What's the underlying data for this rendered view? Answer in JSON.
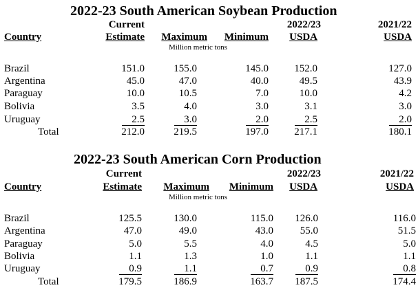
{
  "tables": [
    {
      "title": "2022-23 South American Soybean Production",
      "columns": {
        "country": "Country",
        "current_line1": "Current",
        "current_line2": "Estimate",
        "maximum": "Maximum",
        "minimum": "Minimum",
        "usda2223_line1": "2022/23",
        "usda2223_line2": "USDA",
        "usda2122_line1": "2021/22",
        "usda2122_line2": "USDA"
      },
      "unit": "Million metric tons",
      "rows": [
        {
          "country": "Brazil",
          "current": "151.0",
          "maximum": "155.0",
          "minimum": "145.0",
          "usda2223": "152.0",
          "usda2122": "127.0"
        },
        {
          "country": "Argentina",
          "current": "45.0",
          "maximum": "47.0",
          "minimum": "40.0",
          "usda2223": "49.5",
          "usda2122": "43.9"
        },
        {
          "country": "Paraguay",
          "current": "10.0",
          "maximum": "10.5",
          "minimum": "7.0",
          "usda2223": "10.0",
          "usda2122": "4.2"
        },
        {
          "country": "Bolivia",
          "current": "3.5",
          "maximum": "4.0",
          "minimum": "3.0",
          "usda2223": "3.1",
          "usda2122": "3.0"
        },
        {
          "country": "Uruguay",
          "current": "2.5",
          "maximum": "3.0",
          "minimum": "2.0",
          "usda2223": "2.5",
          "usda2122": "2.0"
        }
      ],
      "total": {
        "country": "Total",
        "current": "212.0",
        "maximum": "219.5",
        "minimum": "197.0",
        "usda2223": "217.1",
        "usda2122": "180.1"
      }
    },
    {
      "title": "2022-23 South American Corn Production",
      "columns": {
        "country": "Country",
        "current_line1": "Current",
        "current_line2": "Estimate",
        "maximum": "Maximum",
        "minimum": "Minimum",
        "usda2223_line1": "2022/23",
        "usda2223_line2": "USDA",
        "usda2122_line1": "2021/22",
        "usda2122_line2": "USDA"
      },
      "unit": "Million metric tons",
      "rows": [
        {
          "country": "Brazil",
          "current": "125.5",
          "maximum": "130.0",
          "minimum": "115.0",
          "usda2223": "126.0",
          "usda2122": "116.0"
        },
        {
          "country": "Argentina",
          "current": "47.0",
          "maximum": "49.0",
          "minimum": "43.0",
          "usda2223": "55.0",
          "usda2122": "51.5"
        },
        {
          "country": "Paraguay",
          "current": "5.0",
          "maximum": "5.5",
          "minimum": "4.0",
          "usda2223": "4.5",
          "usda2122": "5.0"
        },
        {
          "country": "Bolivia",
          "current": "1.1",
          "maximum": "1.3",
          "minimum": "1.0",
          "usda2223": "1.1",
          "usda2122": "1.1"
        },
        {
          "country": "Uruguay",
          "current": "0.9",
          "maximum": "1.1",
          "minimum": "0.7",
          "usda2223": "0.9",
          "usda2122": "0.8"
        }
      ],
      "total": {
        "country": "Total",
        "current": "179.5",
        "maximum": "186.9",
        "minimum": "163.7",
        "usda2223": "187.5",
        "usda2122": "174.4"
      }
    }
  ]
}
